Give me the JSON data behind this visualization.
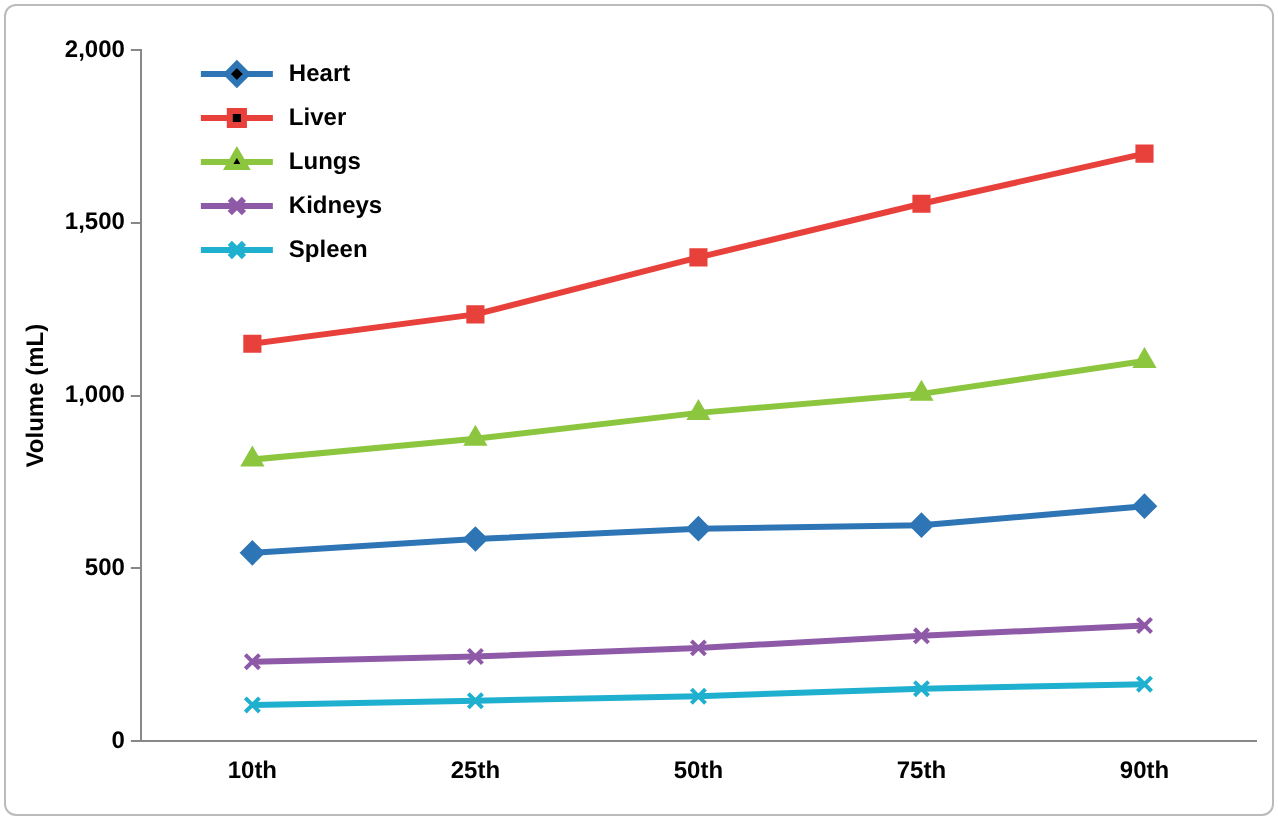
{
  "chart_data": {
    "type": "line",
    "ylabel": "Volume (mL)",
    "categories": [
      "10th",
      "25th",
      "50th",
      "75th",
      "90th"
    ],
    "series": [
      {
        "name": "Heart",
        "color": "#2e75b6",
        "marker": "diamond",
        "values": [
          545,
          585,
          615,
          625,
          680
        ]
      },
      {
        "name": "Liver",
        "color": "#e8403a",
        "marker": "square",
        "values": [
          1150,
          1235,
          1400,
          1555,
          1700
        ]
      },
      {
        "name": "Lungs",
        "color": "#8cc63f",
        "marker": "triangle",
        "values": [
          815,
          875,
          950,
          1005,
          1100
        ]
      },
      {
        "name": "Kidneys",
        "color": "#8e5aa8",
        "marker": "cross",
        "values": [
          230,
          245,
          270,
          305,
          335
        ]
      },
      {
        "name": "Spleen",
        "color": "#1fb0d0",
        "marker": "cross",
        "values": [
          105,
          117,
          130,
          152,
          165
        ]
      }
    ],
    "ylim": [
      0,
      2000
    ],
    "yticks": [
      0,
      {
        "value": 500,
        "label": "500"
      },
      {
        "value": 1000,
        "label": "1,000"
      },
      {
        "value": 1500,
        "label": "1,500"
      },
      {
        "value": 2000,
        "label": "2,000"
      }
    ],
    "grid": false,
    "legend": "top left",
    "line_style": "solid"
  }
}
